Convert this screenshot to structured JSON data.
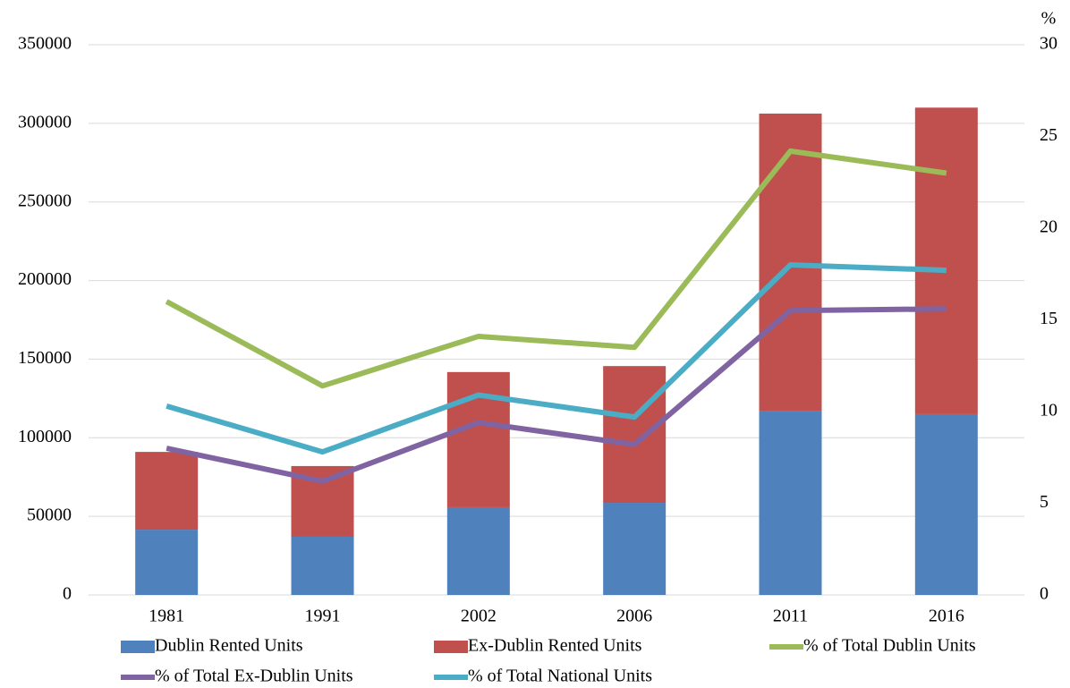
{
  "chart_data": {
    "type": "bar",
    "categories": [
      "1981",
      "1991",
      "2002",
      "2006",
      "2011",
      "2016"
    ],
    "series": [
      {
        "name": "Dublin Rented Units",
        "type": "bar",
        "color": "#4f81bd",
        "values": [
          41500,
          37000,
          55800,
          58600,
          117200,
          115000
        ]
      },
      {
        "name": "Ex-Dublin Rented Units",
        "type": "bar",
        "color": "#c0504d",
        "values": [
          49500,
          45000,
          86000,
          87000,
          189000,
          195000
        ]
      },
      {
        "name": "% of Total Dublin Units",
        "type": "line",
        "axis": "y2",
        "color": "#9bbb59",
        "values": [
          16.0,
          11.4,
          14.1,
          13.5,
          24.2,
          23.0
        ]
      },
      {
        "name": "% of Total Ex-Dublin Units",
        "type": "line",
        "axis": "y2",
        "color": "#8064a2",
        "values": [
          8.0,
          6.2,
          9.4,
          8.2,
          15.5,
          15.6
        ]
      },
      {
        "name": "% of Total National Units",
        "type": "line",
        "axis": "y2",
        "color": "#4bacc6",
        "values": [
          10.3,
          7.8,
          10.9,
          9.7,
          18.0,
          17.7
        ]
      }
    ],
    "stacked": true,
    "ylim": [
      0,
      350000
    ],
    "yticks": [
      0,
      50000,
      100000,
      150000,
      200000,
      250000,
      300000,
      350000
    ],
    "y2label": "%",
    "y2lim": [
      0,
      30
    ],
    "y2ticks": [
      0,
      5,
      10,
      15,
      20,
      25,
      30
    ],
    "grid": true,
    "legend": "bottom"
  }
}
